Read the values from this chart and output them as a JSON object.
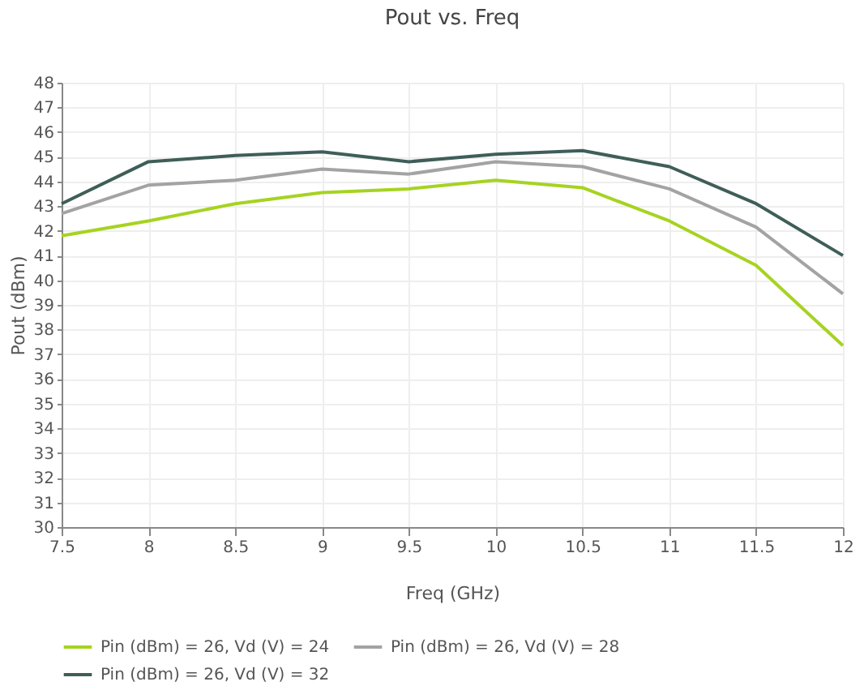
{
  "chart_data": {
    "type": "line",
    "title": "Pout vs. Freq",
    "xlabel": "Freq (GHz)",
    "ylabel": "Pout (dBm)",
    "x": [
      7.5,
      8,
      8.5,
      9,
      9.5,
      10,
      10.5,
      11,
      11.5,
      12
    ],
    "series": [
      {
        "name": "Pin (dBm) = 26, Vd (V) = 24",
        "color": "#a6d321",
        "values": [
          41.8,
          42.4,
          43.1,
          43.55,
          43.7,
          44.05,
          43.75,
          42.4,
          40.6,
          37.35
        ]
      },
      {
        "name": "Pin (dBm) = 26, Vd (V) = 28",
        "color": "#a3a3a3",
        "values": [
          42.7,
          43.85,
          44.05,
          44.5,
          44.3,
          44.8,
          44.6,
          43.7,
          42.15,
          39.45
        ]
      },
      {
        "name": "Pin (dBm) = 26, Vd (V) = 32",
        "color": "#3f5e58",
        "values": [
          43.1,
          44.8,
          45.05,
          45.2,
          44.8,
          45.1,
          45.25,
          44.6,
          43.1,
          41.0
        ]
      }
    ],
    "xlim": [
      7.5,
      12
    ],
    "xticks": [
      7.5,
      8,
      8.5,
      9,
      9.5,
      10,
      10.5,
      11,
      11.5,
      12
    ],
    "ylim": [
      30,
      48
    ],
    "yticks": [
      30,
      31,
      32,
      33,
      34,
      35,
      36,
      37,
      38,
      39,
      40,
      41,
      42,
      43,
      44,
      45,
      46,
      47,
      48
    ],
    "grid": true,
    "legend": "bottom",
    "marker": "none",
    "line_style": "solid"
  }
}
